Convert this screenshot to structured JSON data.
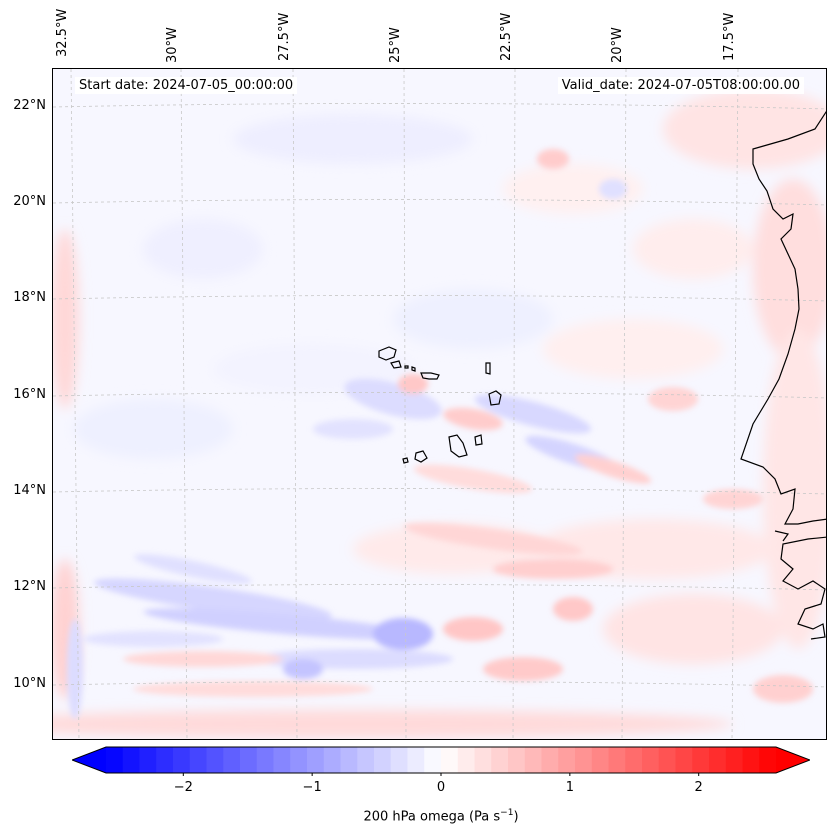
{
  "map": {
    "start_date": "Start date: 2024-07-05_00:00:00",
    "valid_date": "Valid_date: 2024-07-05T08:00:00.00",
    "lon_labels": [
      "32.5°W",
      "30°W",
      "27.5°W",
      "25°W",
      "22.5°W",
      "20°W",
      "17.5°W"
    ],
    "lat_labels": [
      "22°N",
      "20°N",
      "18°N",
      "16°N",
      "14°N",
      "12°N",
      "10°N"
    ],
    "colors": {
      "negative": "#0000ff",
      "neutral": "#ffffff",
      "positive": "#ff0000",
      "coast": "#000000"
    }
  },
  "colorbar": {
    "label_prefix": "200 hPa omega (Pa s",
    "label_exponent": "−1",
    "label_suffix": ")",
    "ticks": [
      "−2",
      "−1",
      "0",
      "1",
      "2"
    ],
    "tick_values": [
      -2,
      -1,
      0,
      1,
      2
    ],
    "range": [
      -2.6,
      2.6
    ],
    "levels": 40
  }
}
